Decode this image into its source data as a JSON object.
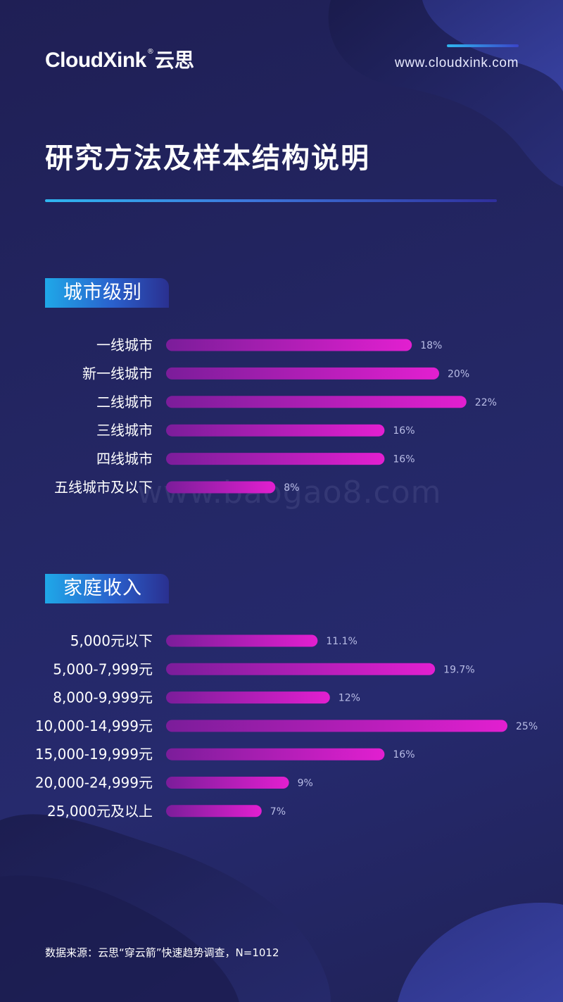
{
  "brand": {
    "name": "CloudXink",
    "reg": "®",
    "cn": "云思"
  },
  "site_url": "www.cloudxink.com",
  "page_title": "研究方法及样本结构说明",
  "watermark": "www.baogao8.com",
  "colors": {
    "bar_start": "#7b1d9a",
    "bar_end": "#e21fd0",
    "accent_cyan": "#2fb6f0"
  },
  "chart_data": [
    {
      "type": "bar",
      "orientation": "horizontal",
      "title": "城市级别",
      "categories": [
        "一线城市",
        "新一线城市",
        "二线城市",
        "三线城市",
        "四线城市",
        "五线城市及以下"
      ],
      "values": [
        18,
        20,
        22,
        16,
        16,
        8
      ],
      "value_labels": [
        "18%",
        "20%",
        "22%",
        "16%",
        "16%",
        "8%"
      ],
      "unit": "%"
    },
    {
      "type": "bar",
      "orientation": "horizontal",
      "title": "家庭收入",
      "categories": [
        "5,000元以下",
        "5,000-7,999元",
        "8,000-9,999元",
        "10,000-14,999元",
        "15,000-19,999元",
        "20,000-24,999元",
        "25,000元及以上"
      ],
      "values": [
        11.1,
        19.7,
        12,
        25,
        16,
        9,
        7
      ],
      "value_labels": [
        "11.1%",
        "19.7%",
        "12%",
        "25%",
        "16%",
        "9%",
        "7%"
      ],
      "unit": "%"
    }
  ],
  "source": "数据来源：云思“穿云箭”快速趋势调查，N=1012"
}
